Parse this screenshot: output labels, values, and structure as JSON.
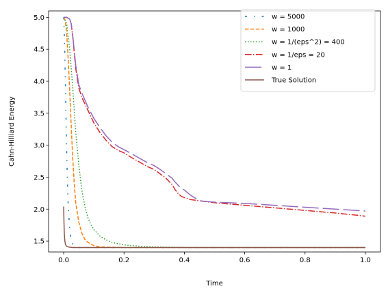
{
  "chart_data": {
    "type": "line",
    "title": "",
    "xlabel": "Time",
    "ylabel": "Cahn-Hilliard Energy",
    "xlim": [
      -0.05,
      1.05
    ],
    "ylim": [
      1.33,
      5.1
    ],
    "xticks": [
      "0.0",
      "0.2",
      "0.4",
      "0.6",
      "0.8",
      "1.0"
    ],
    "xtick_values": [
      0,
      0.2,
      0.4,
      0.6,
      0.8,
      1.0
    ],
    "yticks": [
      "1.5",
      "2.0",
      "2.5",
      "3.0",
      "3.5",
      "4.0",
      "4.5",
      "5.0"
    ],
    "ytick_values": [
      1.5,
      2.0,
      2.5,
      3.0,
      3.5,
      4.0,
      4.5,
      5.0
    ],
    "grid": false,
    "legend_position": "top-right",
    "series": [
      {
        "name": "w = 5000",
        "color": "#1f77b4",
        "dash": "dashdot-sparse",
        "x": [
          0,
          0.003,
          0.006,
          0.009,
          0.012,
          0.015,
          0.02,
          0.025,
          0.03,
          0.04,
          0.05,
          0.1,
          0.3,
          0.5,
          0.7,
          1.0
        ],
        "y": [
          5.0,
          4.6,
          3.9,
          3.1,
          2.5,
          2.05,
          1.7,
          1.52,
          1.45,
          1.41,
          1.4,
          1.4,
          1.4,
          1.4,
          1.4,
          1.4
        ]
      },
      {
        "name": "w = 1000",
        "color": "#ff7f0e",
        "dash": "dashed",
        "x": [
          0,
          0.005,
          0.01,
          0.015,
          0.02,
          0.025,
          0.03,
          0.035,
          0.04,
          0.05,
          0.06,
          0.07,
          0.08,
          0.1,
          0.12,
          0.15,
          0.2,
          0.3,
          0.5,
          0.7,
          1.0
        ],
        "y": [
          5.0,
          4.95,
          4.75,
          4.35,
          3.85,
          3.3,
          2.8,
          2.4,
          2.1,
          1.8,
          1.63,
          1.53,
          1.48,
          1.43,
          1.41,
          1.405,
          1.4,
          1.4,
          1.4,
          1.4,
          1.4
        ]
      },
      {
        "name": "w = 1/(eps^2) = 400",
        "color": "#2ca02c",
        "dash": "dotted",
        "x": [
          0,
          0.01,
          0.02,
          0.03,
          0.04,
          0.05,
          0.06,
          0.07,
          0.08,
          0.09,
          0.1,
          0.12,
          0.14,
          0.16,
          0.18,
          0.2,
          0.25,
          0.3,
          0.35,
          0.4,
          0.5,
          0.6,
          0.8,
          1.0
        ],
        "y": [
          5.0,
          4.9,
          4.5,
          3.9,
          3.2,
          2.7,
          2.3,
          2.05,
          1.87,
          1.76,
          1.68,
          1.58,
          1.52,
          1.48,
          1.46,
          1.44,
          1.42,
          1.41,
          1.405,
          1.4,
          1.4,
          1.4,
          1.4,
          1.4
        ]
      },
      {
        "name": "w = 1/eps = 20",
        "color": "#d62728",
        "dash": "dashdot",
        "x": [
          0,
          0.01,
          0.02,
          0.025,
          0.03,
          0.04,
          0.05,
          0.06,
          0.08,
          0.1,
          0.12,
          0.14,
          0.16,
          0.18,
          0.2,
          0.22,
          0.25,
          0.28,
          0.3,
          0.32,
          0.34,
          0.36,
          0.37,
          0.38,
          0.39,
          0.4,
          0.42,
          0.45,
          0.5,
          0.6,
          0.7,
          0.8,
          0.9,
          1.0
        ],
        "y": [
          5.0,
          5.0,
          4.97,
          4.9,
          4.7,
          4.2,
          3.9,
          3.75,
          3.55,
          3.35,
          3.2,
          3.08,
          2.98,
          2.92,
          2.88,
          2.82,
          2.74,
          2.66,
          2.62,
          2.55,
          2.48,
          2.38,
          2.3,
          2.24,
          2.2,
          2.18,
          2.15,
          2.13,
          2.1,
          2.06,
          2.02,
          1.98,
          1.94,
          1.89
        ]
      },
      {
        "name": "w = 1",
        "color": "#9467bd",
        "dash": "longdash",
        "x": [
          0,
          0.01,
          0.02,
          0.025,
          0.03,
          0.04,
          0.05,
          0.06,
          0.08,
          0.1,
          0.12,
          0.14,
          0.16,
          0.18,
          0.2,
          0.22,
          0.25,
          0.28,
          0.3,
          0.32,
          0.34,
          0.36,
          0.37,
          0.38,
          0.39,
          0.4,
          0.42,
          0.44,
          0.45,
          0.5,
          0.6,
          0.7,
          0.8,
          0.9,
          1.0
        ],
        "y": [
          5.0,
          5.0,
          4.97,
          4.9,
          4.72,
          4.25,
          3.95,
          3.82,
          3.6,
          3.42,
          3.28,
          3.15,
          3.05,
          2.98,
          2.93,
          2.88,
          2.8,
          2.72,
          2.68,
          2.62,
          2.55,
          2.48,
          2.42,
          2.37,
          2.33,
          2.3,
          2.22,
          2.16,
          2.13,
          2.11,
          2.09,
          2.06,
          2.03,
          2.0,
          1.97
        ]
      },
      {
        "name": "True Solution",
        "color": "#8c564b",
        "dash": "solid",
        "x": [
          0,
          0.001,
          0.002,
          0.004,
          0.006,
          0.008,
          0.01,
          0.015,
          0.02,
          0.03,
          0.05,
          0.1,
          0.3,
          0.5,
          0.7,
          1.0
        ],
        "y": [
          2.04,
          1.8,
          1.62,
          1.5,
          1.45,
          1.43,
          1.42,
          1.41,
          1.405,
          1.4,
          1.4,
          1.4,
          1.4,
          1.4,
          1.4,
          1.4
        ]
      }
    ]
  }
}
